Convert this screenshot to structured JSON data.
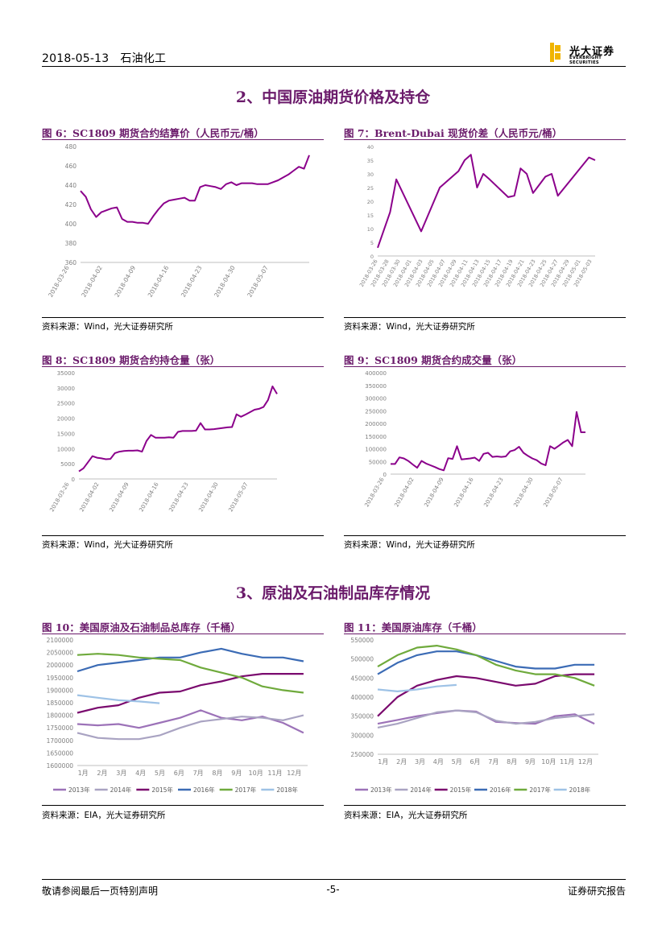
{
  "header": {
    "date": "2018-05-13",
    "industry": "石油化工",
    "logo_cn": "光大证券",
    "logo_en": "EVERBRIGHT SECURITIES"
  },
  "sections": [
    {
      "title": "2、中国原油期货价格及持仓"
    },
    {
      "title": "3、原油及石油制品库存情况"
    }
  ],
  "figures": [
    {
      "title": "图 6：SC1809 期货合约结算价（人民币元/桶）",
      "source": "资料来源：Wind，光大证券研究所"
    },
    {
      "title": "图 7：Brent-Dubai 现货价差（人民币元/桶）",
      "source": "资料来源：Wind，光大证券研究所"
    },
    {
      "title": "图 8：SC1809 期货合约持仓量（张）",
      "source": "资料来源：Wind，光大证券研究所"
    },
    {
      "title": "图 9：SC1809 期货合约成交量（张）",
      "source": "资料来源：Wind，光大证券研究所"
    },
    {
      "title": "图 10：美国原油及石油制品总库存（千桶）",
      "source": "资料来源：EIA，光大证券研究所"
    },
    {
      "title": "图 11：美国原油库存（千桶）",
      "source": "资料来源：EIA，光大证券研究所"
    }
  ],
  "footer": {
    "left": "敬请参阅最后一页特别声明",
    "center": "-5-",
    "right": "证券研究报告"
  },
  "colors": {
    "accent": "#6b1b6b",
    "line": "#8b008b",
    "s2013": "#9c72b8",
    "s2014": "#a9a3c2",
    "s2015": "#7a0a6e",
    "s2016": "#3b6bb5",
    "s2017": "#6faa3c",
    "s2018": "#9ec2e6"
  },
  "chart_data": [
    {
      "id": "fig6",
      "type": "line",
      "ylim": [
        360,
        480
      ],
      "yticks": [
        360,
        380,
        400,
        420,
        440,
        460,
        480
      ],
      "xtick_labels": [
        "2018-03-26",
        "2018-04-02",
        "2018-04-09",
        "2018-04-16",
        "2018-04-23",
        "2018-04-30",
        "2018-05-07"
      ],
      "x": [
        0,
        1,
        2,
        3,
        4,
        5,
        6,
        7,
        8,
        9,
        10,
        11,
        12,
        13,
        14,
        15,
        16,
        17,
        18,
        19,
        20,
        21,
        22,
        23,
        24,
        25,
        26,
        27,
        28,
        29,
        30,
        31,
        32,
        33,
        34,
        35,
        36,
        37,
        38,
        39,
        40,
        41,
        42,
        43,
        44
      ],
      "values": [
        434,
        428,
        415,
        407,
        412,
        414,
        416,
        417,
        405,
        402,
        402,
        401,
        401,
        400,
        408,
        415,
        421,
        424,
        425,
        426,
        427,
        424,
        424,
        438,
        440,
        439,
        438,
        436,
        441,
        443,
        440,
        442,
        442,
        442,
        441,
        441,
        441,
        443,
        445,
        448,
        451,
        455,
        459,
        457,
        471
      ],
      "grid": false
    },
    {
      "id": "fig7",
      "type": "line",
      "ylim": [
        0,
        40
      ],
      "yticks": [
        0,
        5,
        10,
        15,
        20,
        25,
        30,
        35,
        40
      ],
      "xtick_labels": [
        "2018-03-26",
        "2018-03-28",
        "2018-03-30",
        "2018-04-01",
        "2018-04-03",
        "2018-04-05",
        "2018-04-07",
        "2018-04-09",
        "2018-04-11",
        "2018-04-13",
        "2018-04-15",
        "2018-04-17",
        "2018-04-19",
        "2018-04-21",
        "2018-04-23",
        "2018-04-25",
        "2018-04-27",
        "2018-04-29",
        "2018-05-01",
        "2018-05-03"
      ],
      "x": [
        0,
        2,
        3,
        7,
        10,
        13,
        14,
        15,
        16,
        17,
        18,
        21,
        22,
        23,
        24,
        25,
        26,
        27,
        28,
        29,
        34,
        35
      ],
      "values": [
        3,
        16,
        28,
        9,
        25,
        31,
        35,
        37,
        25,
        30,
        28,
        21.5,
        22,
        32,
        30,
        23,
        26,
        29,
        30,
        22,
        36,
        35
      ],
      "grid": false
    },
    {
      "id": "fig8",
      "type": "line",
      "ylim": [
        0,
        35000
      ],
      "yticks": [
        0,
        5000,
        10000,
        15000,
        20000,
        25000,
        30000,
        35000
      ],
      "xtick_labels": [
        "2018-03-26",
        "2018-04-02",
        "2018-04-09",
        "2018-04-16",
        "2018-04-23",
        "2018-04-30",
        "2018-05-07"
      ],
      "x": [
        0,
        1,
        2,
        3,
        4,
        5,
        6,
        7,
        8,
        9,
        10,
        11,
        12,
        13,
        14,
        15,
        16,
        17,
        18,
        19,
        20,
        21,
        22,
        23,
        24,
        25,
        26,
        27,
        28,
        29,
        30,
        31,
        32,
        33,
        34,
        35,
        36,
        37,
        38,
        39,
        40,
        41,
        42,
        43,
        44
      ],
      "values": [
        2500,
        3500,
        5500,
        7500,
        7000,
        6800,
        6500,
        6600,
        8500,
        9000,
        9200,
        9300,
        9300,
        9400,
        9000,
        12500,
        14500,
        13600,
        13600,
        13600,
        13700,
        13600,
        15500,
        15800,
        15800,
        15800,
        15900,
        18400,
        16300,
        16300,
        16400,
        16600,
        16800,
        17000,
        17100,
        21300,
        20500,
        21200,
        22000,
        22800,
        23100,
        23700,
        26000,
        30500,
        28000
      ],
      "grid": false
    },
    {
      "id": "fig9",
      "type": "line",
      "ylim": [
        0,
        400000
      ],
      "yticks": [
        0,
        50000,
        100000,
        150000,
        200000,
        250000,
        300000,
        350000,
        400000
      ],
      "xtick_labels": [
        "2018-03-26",
        "2018-04-02",
        "2018-04-09",
        "2018-04-16",
        "2018-04-23",
        "2018-04-30",
        "2018-05-07"
      ],
      "x": [
        0,
        1,
        2,
        3,
        4,
        5,
        6,
        7,
        8,
        9,
        10,
        11,
        12,
        13,
        14,
        15,
        16,
        17,
        18,
        19,
        20,
        21,
        22,
        23,
        24,
        25,
        26,
        27,
        28,
        29,
        30,
        31,
        32,
        33,
        34,
        35,
        36,
        37,
        38,
        39,
        40,
        41,
        42,
        43,
        44
      ],
      "values": [
        40000,
        40000,
        66000,
        62000,
        52000,
        38000,
        25000,
        52000,
        42000,
        35000,
        28000,
        20000,
        15000,
        63000,
        60000,
        110000,
        58000,
        60000,
        62000,
        65000,
        52000,
        80000,
        84000,
        68000,
        70000,
        68000,
        70000,
        90000,
        95000,
        108000,
        84000,
        72000,
        62000,
        55000,
        42000,
        35000,
        110000,
        100000,
        112000,
        125000,
        135000,
        110000,
        245000,
        165000,
        165000
      ],
      "grid": false
    },
    {
      "id": "fig10",
      "type": "line",
      "ylim": [
        1600000,
        2100000
      ],
      "yticks": [
        1600000,
        1650000,
        1700000,
        1750000,
        1800000,
        1850000,
        1900000,
        1950000,
        2000000,
        2050000,
        2100000
      ],
      "xtick_labels": [
        "1月",
        "2月",
        "3月",
        "4月",
        "5月",
        "6月",
        "7月",
        "8月",
        "9月",
        "10月",
        "11月",
        "12月"
      ],
      "legend": [
        "2013年",
        "2014年",
        "2015年",
        "2016年",
        "2017年",
        "2018年"
      ],
      "legend_position": "bottom",
      "series": [
        {
          "name": "2013年",
          "color_key": "s2013",
          "x": [
            0,
            1,
            2,
            3,
            4,
            5,
            6,
            7,
            8,
            9,
            10,
            11
          ],
          "values": [
            1765000,
            1760000,
            1765000,
            1750000,
            1770000,
            1790000,
            1820000,
            1790000,
            1780000,
            1795000,
            1770000,
            1730000
          ]
        },
        {
          "name": "2014年",
          "color_key": "s2014",
          "x": [
            0,
            1,
            2,
            3,
            4,
            5,
            6,
            7,
            8,
            9,
            10,
            11
          ],
          "values": [
            1730000,
            1710000,
            1705000,
            1705000,
            1720000,
            1750000,
            1775000,
            1785000,
            1795000,
            1790000,
            1780000,
            1800000
          ]
        },
        {
          "name": "2015年",
          "color_key": "s2015",
          "x": [
            0,
            1,
            2,
            3,
            4,
            5,
            6,
            7,
            8,
            9,
            10,
            11
          ],
          "values": [
            1810000,
            1830000,
            1840000,
            1870000,
            1890000,
            1895000,
            1920000,
            1935000,
            1955000,
            1965000,
            1965000,
            1965000
          ]
        },
        {
          "name": "2016年",
          "color_key": "s2016",
          "x": [
            0,
            1,
            2,
            3,
            4,
            5,
            6,
            7,
            8,
            9,
            10,
            11
          ],
          "values": [
            1975000,
            2000000,
            2010000,
            2020000,
            2030000,
            2030000,
            2050000,
            2065000,
            2045000,
            2030000,
            2030000,
            2015000
          ]
        },
        {
          "name": "2017年",
          "color_key": "s2017",
          "x": [
            0,
            1,
            2,
            3,
            4,
            5,
            6,
            7,
            8,
            9,
            10,
            11
          ],
          "values": [
            2040000,
            2045000,
            2040000,
            2030000,
            2025000,
            2020000,
            1990000,
            1970000,
            1950000,
            1915000,
            1900000,
            1890000
          ]
        },
        {
          "name": "2018年",
          "color_key": "s2018",
          "x": [
            0,
            1,
            2,
            3,
            4
          ],
          "values": [
            1880000,
            1870000,
            1860000,
            1855000,
            1848000
          ]
        }
      ]
    },
    {
      "id": "fig11",
      "type": "line",
      "ylim": [
        250000,
        550000
      ],
      "yticks": [
        250000,
        300000,
        350000,
        400000,
        450000,
        500000,
        550000
      ],
      "xtick_labels": [
        "1月",
        "2月",
        "3月",
        "4月",
        "5月",
        "6月",
        "7月",
        "8月",
        "9月",
        "10月",
        "11月",
        "12月"
      ],
      "legend": [
        "2013年",
        "2014年",
        "2015年",
        "2016年",
        "2017年",
        "2018年"
      ],
      "legend_position": "bottom",
      "series": [
        {
          "name": "2013年",
          "color_key": "s2013",
          "x": [
            0,
            1,
            2,
            3,
            4,
            5,
            6,
            7,
            8,
            9,
            10,
            11
          ],
          "values": [
            330000,
            340000,
            350000,
            358000,
            365000,
            362000,
            335000,
            332000,
            330000,
            350000,
            355000,
            330000
          ]
        },
        {
          "name": "2014年",
          "color_key": "s2014",
          "x": [
            0,
            1,
            2,
            3,
            4,
            5,
            6,
            7,
            8,
            9,
            10,
            11
          ],
          "values": [
            320000,
            330000,
            345000,
            360000,
            365000,
            360000,
            338000,
            330000,
            335000,
            345000,
            350000,
            355000
          ]
        },
        {
          "name": "2015年",
          "color_key": "s2015",
          "x": [
            0,
            1,
            2,
            3,
            4,
            5,
            6,
            7,
            8,
            9,
            10,
            11
          ],
          "values": [
            350000,
            400000,
            430000,
            445000,
            455000,
            450000,
            440000,
            430000,
            435000,
            455000,
            460000,
            460000
          ]
        },
        {
          "name": "2016年",
          "color_key": "s2016",
          "x": [
            0,
            1,
            2,
            3,
            4,
            5,
            6,
            7,
            8,
            9,
            10,
            11
          ],
          "values": [
            460000,
            490000,
            510000,
            520000,
            520000,
            510000,
            495000,
            480000,
            475000,
            475000,
            485000,
            485000
          ]
        },
        {
          "name": "2017年",
          "color_key": "s2017",
          "x": [
            0,
            1,
            2,
            3,
            4,
            5,
            6,
            7,
            8,
            9,
            10,
            11
          ],
          "values": [
            480000,
            510000,
            530000,
            535000,
            525000,
            510000,
            485000,
            470000,
            460000,
            460000,
            450000,
            430000
          ]
        },
        {
          "name": "2018年",
          "color_key": "s2018",
          "x": [
            0,
            1,
            2,
            3,
            4
          ],
          "values": [
            420000,
            415000,
            420000,
            428000,
            432000
          ]
        }
      ]
    }
  ]
}
